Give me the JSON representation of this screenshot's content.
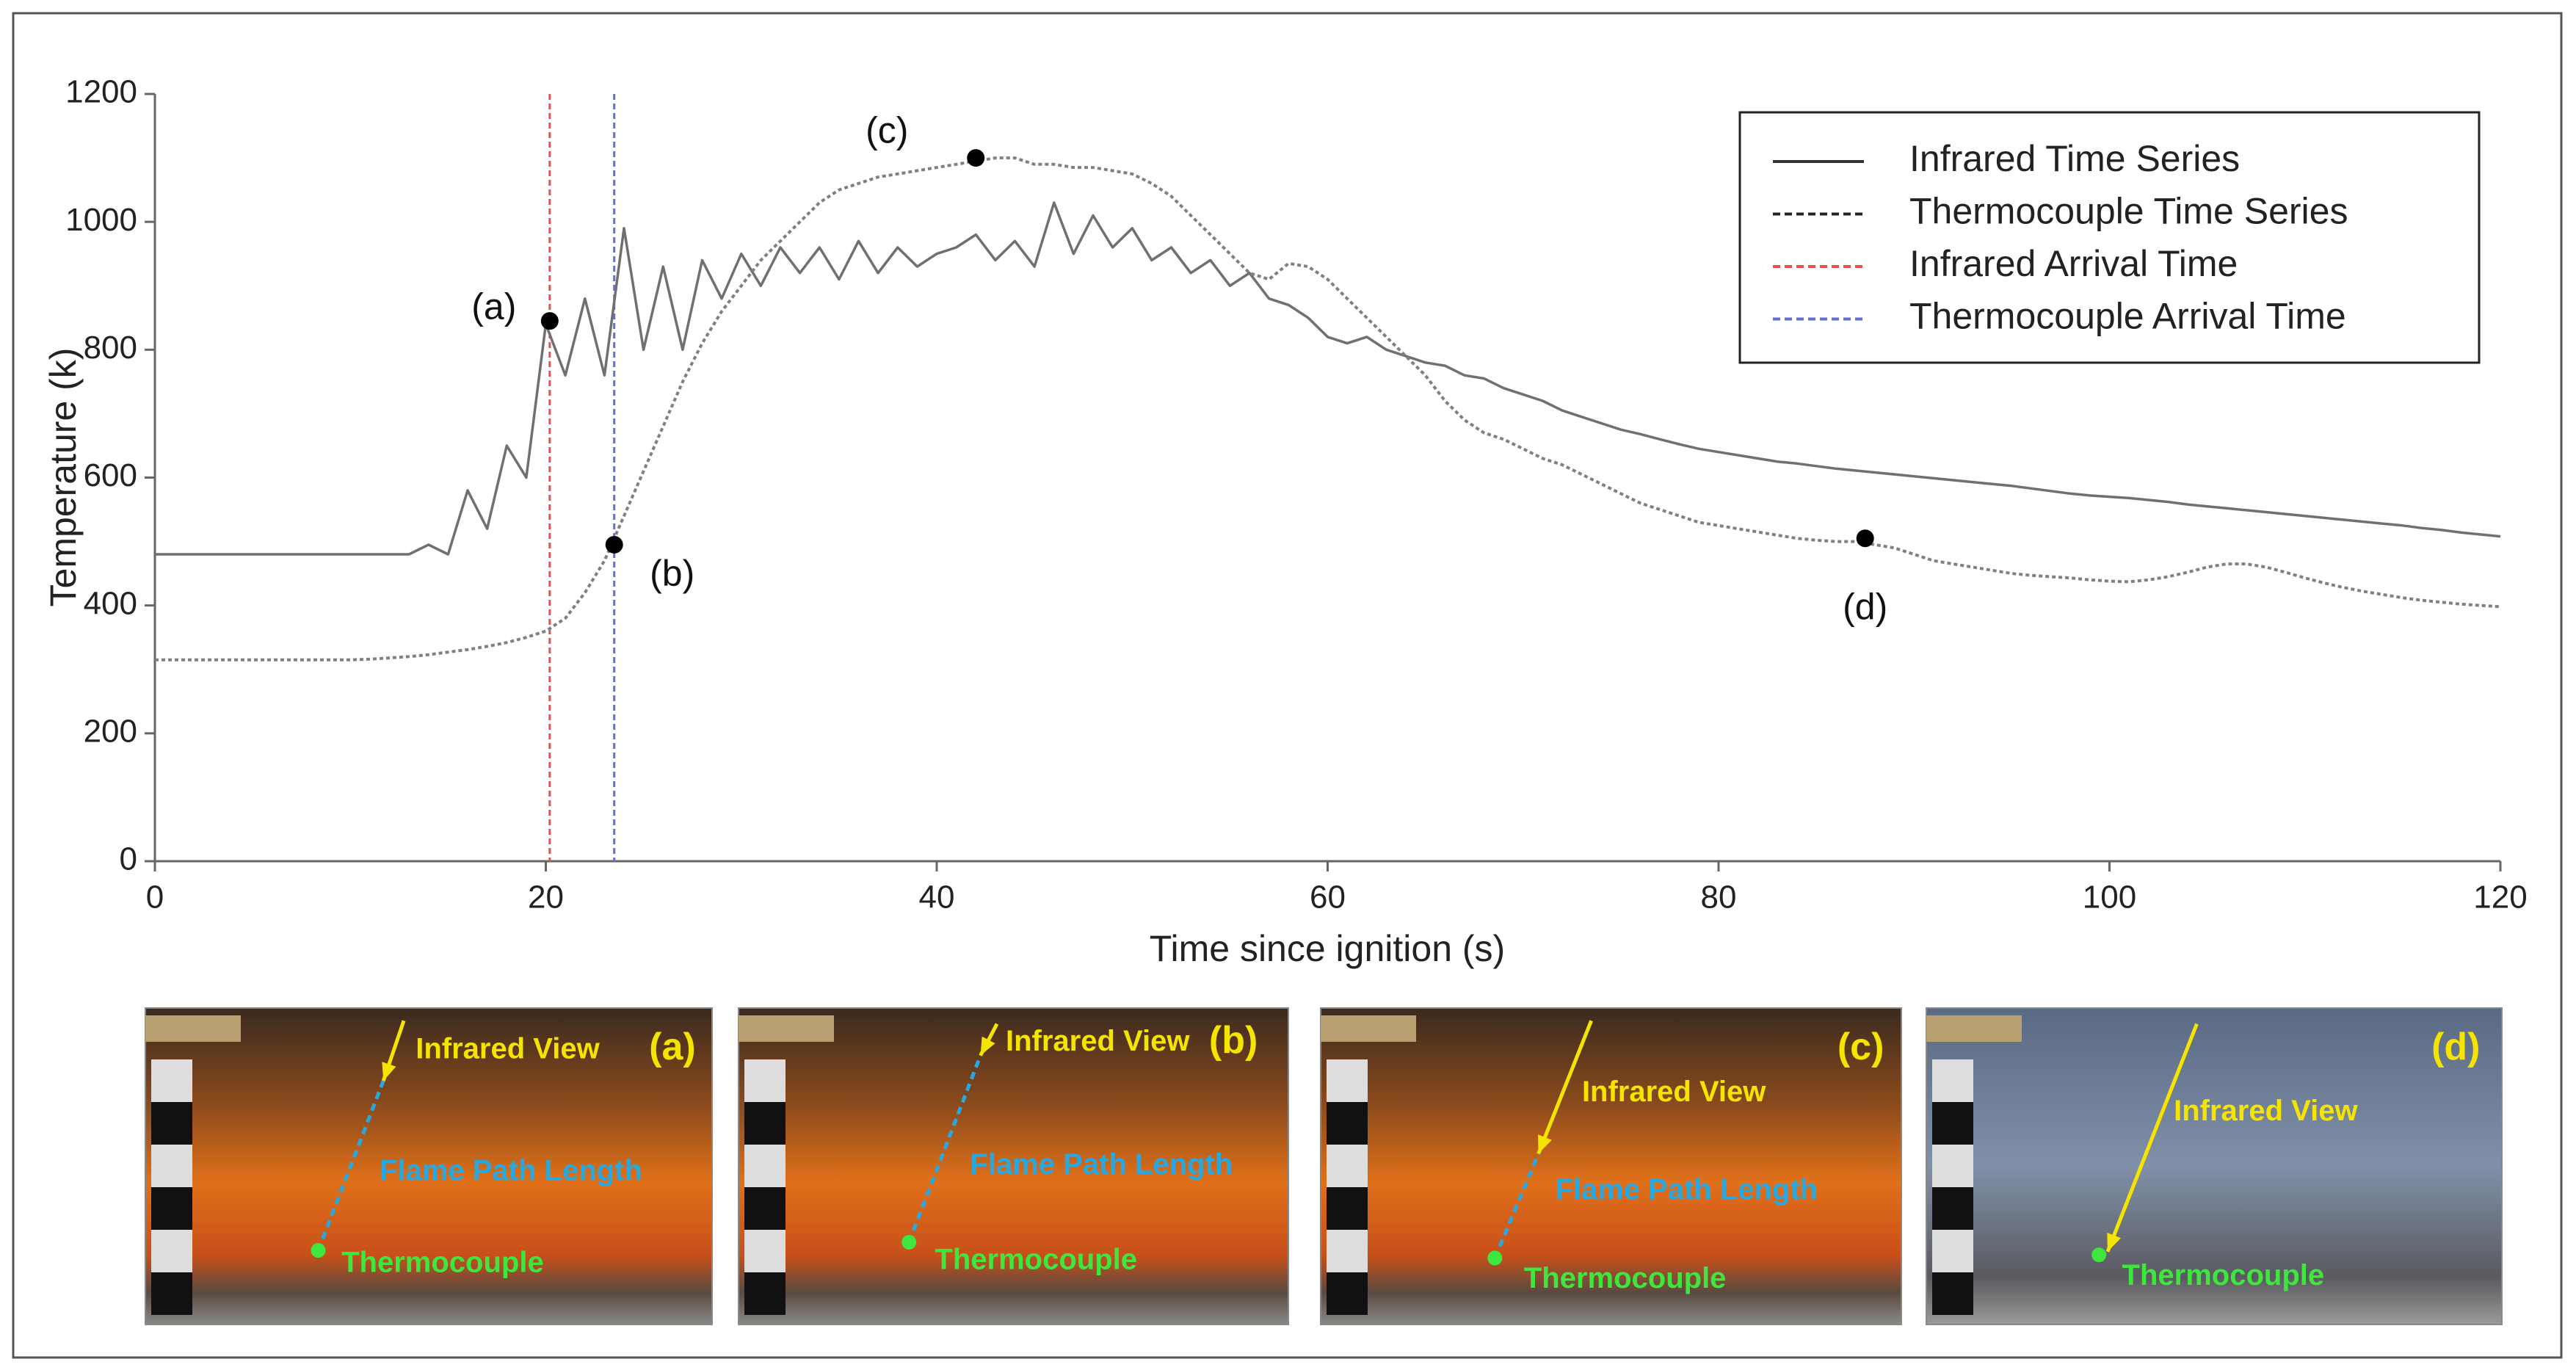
{
  "chart_data": {
    "type": "line",
    "xlabel": "Time since ignition (s)",
    "ylabel": "Temperature (k)",
    "xlim": [
      0,
      120
    ],
    "ylim": [
      0,
      1200
    ],
    "xticks": [
      0,
      20,
      40,
      60,
      80,
      100,
      120
    ],
    "yticks": [
      0,
      200,
      400,
      600,
      800,
      1000,
      1200
    ],
    "legend": "upper right",
    "x": [
      0,
      1,
      2,
      3,
      4,
      5,
      6,
      7,
      8,
      9,
      10,
      11,
      12,
      13,
      14,
      15,
      16,
      17,
      18,
      19,
      20,
      21,
      22,
      23,
      24,
      25,
      26,
      27,
      28,
      29,
      30,
      31,
      32,
      33,
      34,
      35,
      36,
      37,
      38,
      39,
      40,
      41,
      42,
      43,
      44,
      45,
      46,
      47,
      48,
      49,
      50,
      51,
      52,
      53,
      54,
      55,
      56,
      57,
      58,
      59,
      60,
      61,
      62,
      63,
      64,
      65,
      66,
      67,
      68,
      69,
      70,
      71,
      72,
      73,
      74,
      75,
      76,
      77,
      78,
      79,
      80,
      81,
      82,
      83,
      84,
      85,
      86,
      87,
      88,
      89,
      90,
      91,
      92,
      93,
      94,
      95,
      96,
      97,
      98,
      99,
      100,
      101,
      102,
      103,
      104,
      105,
      106,
      107,
      108,
      109,
      110,
      111,
      112,
      113,
      114,
      115,
      116,
      117,
      118,
      119,
      120
    ],
    "series": [
      {
        "name": "Infrared Time Series",
        "color": "#707070",
        "dash": "solid",
        "values": [
          480,
          480,
          480,
          480,
          480,
          480,
          480,
          480,
          480,
          480,
          480,
          480,
          480,
          480,
          495,
          480,
          580,
          520,
          650,
          600,
          840,
          760,
          880,
          760,
          990,
          800,
          930,
          800,
          940,
          880,
          950,
          900,
          960,
          920,
          960,
          910,
          970,
          920,
          960,
          930,
          950,
          960,
          980,
          940,
          970,
          930,
          1030,
          950,
          1010,
          960,
          990,
          940,
          960,
          920,
          940,
          900,
          920,
          880,
          870,
          850,
          820,
          810,
          820,
          800,
          790,
          780,
          775,
          760,
          755,
          740,
          730,
          720,
          705,
          695,
          685,
          675,
          668,
          660,
          652,
          645,
          640,
          635,
          630,
          625,
          622,
          618,
          614,
          611,
          608,
          605,
          602,
          599,
          596,
          593,
          590,
          587,
          583,
          579,
          575,
          572,
          570,
          568,
          565,
          562,
          558,
          555,
          552,
          549,
          546,
          543,
          540,
          537,
          534,
          531,
          528,
          525,
          521,
          518,
          514,
          511,
          508
        ]
      },
      {
        "name": "Thermocouple Time Series",
        "color": "#808080",
        "dash": "dotted",
        "values": [
          315,
          315,
          315,
          315,
          315,
          315,
          315,
          315,
          315,
          315,
          315,
          316,
          318,
          320,
          323,
          327,
          331,
          336,
          342,
          350,
          360,
          380,
          420,
          470,
          540,
          610,
          680,
          750,
          810,
          860,
          900,
          940,
          970,
          1000,
          1030,
          1050,
          1060,
          1070,
          1075,
          1080,
          1085,
          1090,
          1095,
          1100,
          1100,
          1090,
          1090,
          1085,
          1085,
          1080,
          1075,
          1060,
          1040,
          1010,
          980,
          950,
          920,
          910,
          935,
          930,
          910,
          880,
          850,
          820,
          790,
          760,
          720,
          690,
          670,
          660,
          645,
          630,
          620,
          605,
          590,
          575,
          560,
          550,
          540,
          530,
          525,
          520,
          515,
          510,
          505,
          502,
          500,
          500,
          495,
          490,
          480,
          470,
          465,
          460,
          455,
          450,
          447,
          445,
          443,
          440,
          438,
          437,
          440,
          445,
          452,
          460,
          465,
          465,
          460,
          452,
          443,
          435,
          428,
          422,
          417,
          412,
          408,
          405,
          402,
          400,
          398
        ]
      }
    ],
    "arrival_lines": [
      {
        "name": "Infrared Arrival Time",
        "color": "#e85050",
        "x": 20.2
      },
      {
        "name": "Thermocouple Arrival Time",
        "color": "#5c6ee0",
        "x": 23.5
      }
    ],
    "annotations": [
      {
        "label": "(a)",
        "x": 20.2,
        "y": 845
      },
      {
        "label": "(b)",
        "x": 23.5,
        "y": 495
      },
      {
        "label": "(c)",
        "x": 42,
        "y": 1100
      },
      {
        "label": "(d)",
        "x": 87.5,
        "y": 505
      }
    ],
    "panels": [
      {
        "label": "(a)",
        "view": "Infrared View",
        "path": "Flame Path Length",
        "sensor": "Thermocouple"
      },
      {
        "label": "(b)",
        "view": "Infrared View",
        "path": "Flame Path Length",
        "sensor": "Thermocouple"
      },
      {
        "label": "(c)",
        "view": "Infrared View",
        "path": "Flame Path Length",
        "sensor": "Thermocouple"
      },
      {
        "label": "(d)",
        "view": "Infrared View",
        "sensor": "Thermocouple"
      }
    ]
  }
}
